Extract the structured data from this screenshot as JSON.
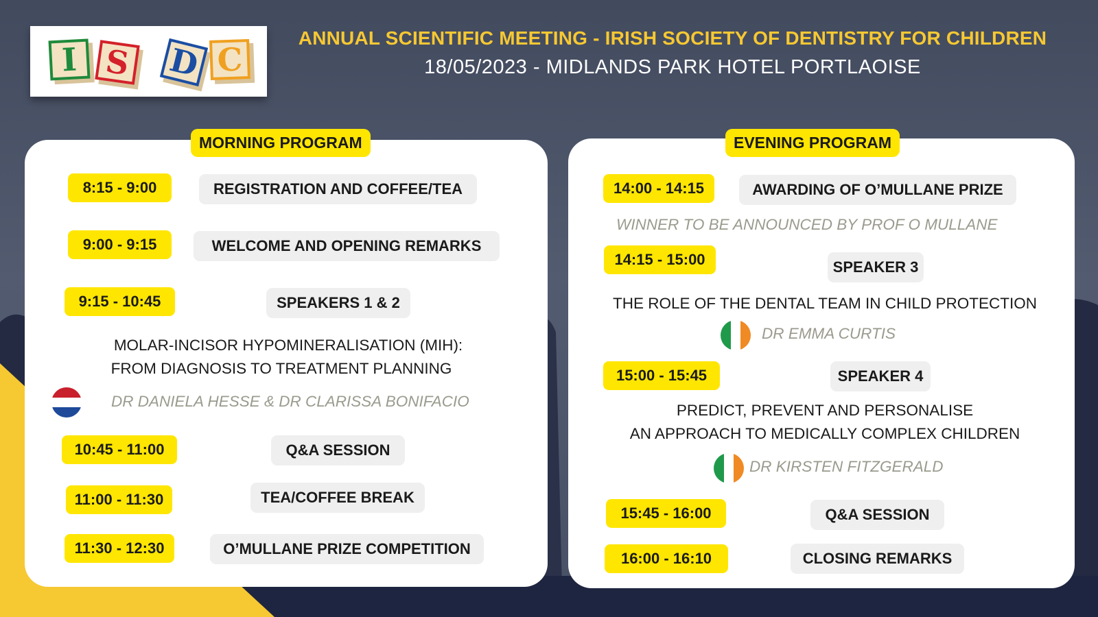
{
  "header": {
    "title": "ANNUAL SCIENTIFIC MEETING -  IRISH SOCIETY OF DENTISTRY FOR CHILDREN",
    "subtitle": "18/05/2023 - MIDLANDS PARK HOTEL PORTLAOISE",
    "logo_letters": [
      "I",
      "S",
      "D",
      "C"
    ]
  },
  "morning": {
    "heading": "MORNING PROGRAM",
    "slots": [
      {
        "time": "8:15 - 9:00",
        "title": "REGISTRATION AND COFFEE/TEA"
      },
      {
        "time": "9:00 - 9:15",
        "title": "WELCOME AND OPENING REMARKS"
      },
      {
        "time": "9:15 - 10:45",
        "title": "SPEAKERS 1 & 2"
      },
      {
        "time": "10:45 - 11:00",
        "title": "Q&A  SESSION"
      },
      {
        "time": "11:00 - 11:30",
        "title": "TEA/COFFEE BREAK"
      },
      {
        "time": "11:30 - 12:30",
        "title": "O’MULLANE PRIZE COMPETITION"
      }
    ],
    "talk_line1": "MOLAR-INCISOR HYPOMINERALISATION (MIH):",
    "talk_line2": "FROM DIAGNOSIS TO TREATMENT PLANNING",
    "speakers": "DR DANIELA HESSE & DR CLARISSA BONIFACIO",
    "speakers_flag": "netherlands-flag-icon"
  },
  "evening": {
    "heading": "EVENING PROGRAM",
    "slots": [
      {
        "time": "14:00 - 14:15",
        "title": "AWARDING OF O’MULLANE PRIZE"
      },
      {
        "time": "14:15 - 15:00",
        "title": "SPEAKER 3"
      },
      {
        "time": "15:00 - 15:45",
        "title": "SPEAKER 4"
      },
      {
        "time": "15:45 - 16:00",
        "title": "Q&A  SESSION"
      },
      {
        "time": "16:00 - 16:10",
        "title": "CLOSING REMARKS"
      }
    ],
    "prize_note": "WINNER TO BE ANNOUNCED BY PROF O MULLANE",
    "talk3": "THE ROLE OF THE DENTAL TEAM IN CHILD PROTECTION",
    "speaker3": "DR EMMA CURTIS",
    "talk4_line1": "PREDICT, PREVENT AND PERSONALISE",
    "talk4_line2": "AN APPROACH TO MEDICALLY COMPLEX CHILDREN",
    "speaker4": "DR KIRSTEN FITZGERALD",
    "speaker_flag": "ireland-flag-icon"
  },
  "colors": {
    "accent_yellow": "#ffe600",
    "title_gold": "#f6c832",
    "background": "#4d5568",
    "dark_navy": "#1e2540"
  }
}
